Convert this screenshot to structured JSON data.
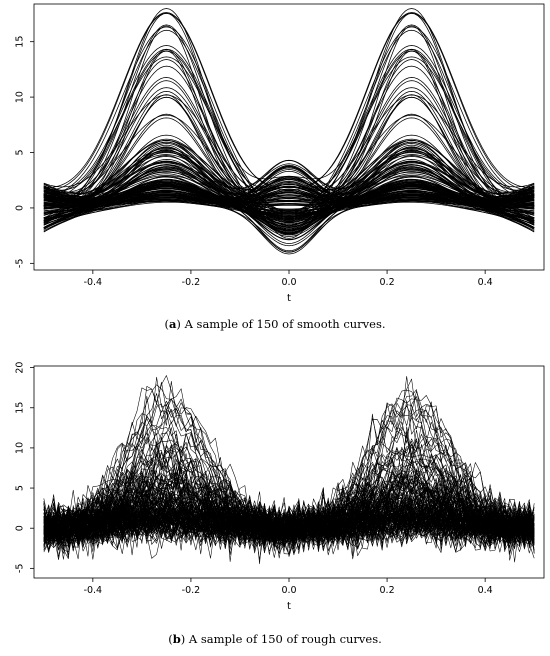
{
  "figure": {
    "panels": [
      {
        "id": "a",
        "caption_letter": "a",
        "caption_open": "(",
        "caption_close": ")",
        "caption_text": " A sample of 150 of smooth curves."
      },
      {
        "id": "b",
        "caption_letter": "b",
        "caption_open": "(",
        "caption_close": ")",
        "caption_text": " A sample of 150 of rough curves."
      }
    ]
  },
  "chart_data": [
    {
      "type": "line",
      "panel": "a",
      "style": "smooth",
      "n_curves": 150,
      "xlabel": "t",
      "ylabel": "",
      "xlim": [
        -0.5,
        0.5
      ],
      "ylim": [
        -5,
        18
      ],
      "x_ticks": [
        -0.4,
        -0.2,
        0.0,
        0.2,
        0.4
      ],
      "x_tick_labels": [
        "-0.4",
        "-0.2",
        "0.0",
        "0.2",
        "0.4"
      ],
      "y_ticks": [
        -5,
        0,
        5,
        10,
        15
      ],
      "y_tick_labels": [
        "-5",
        "0",
        "5",
        "10",
        "15"
      ],
      "grid": false,
      "legend": "none",
      "line_color": "#000000",
      "shape_description_values": {
        "peak_locations_x": [
          -0.25,
          0.25
        ],
        "max_peak_y": 17.9,
        "center_max_y": 4.3,
        "center_min_y": -4.3,
        "endpoint_y_range": [
          -2.3,
          2.1
        ]
      }
    },
    {
      "type": "line",
      "panel": "b",
      "style": "rough",
      "n_curves": 150,
      "xlabel": "t",
      "ylabel": "",
      "xlim": [
        -0.5,
        0.5
      ],
      "ylim": [
        -6,
        20
      ],
      "x_ticks": [
        -0.4,
        -0.2,
        0.0,
        0.2,
        0.4
      ],
      "x_tick_labels": [
        "-0.4",
        "-0.2",
        "0.0",
        "0.2",
        "0.4"
      ],
      "y_ticks": [
        -5,
        0,
        5,
        10,
        15,
        20
      ],
      "y_tick_labels": [
        "-5",
        "0",
        "5",
        "10",
        "15",
        "20"
      ],
      "grid": false,
      "legend": "none",
      "line_color": "#000000",
      "shape_description_values": {
        "peak_locations_x": [
          -0.25,
          0.25
        ],
        "max_peak_y": 19,
        "min_y": -5.5,
        "noise_sd_approx": 1.2
      }
    }
  ]
}
